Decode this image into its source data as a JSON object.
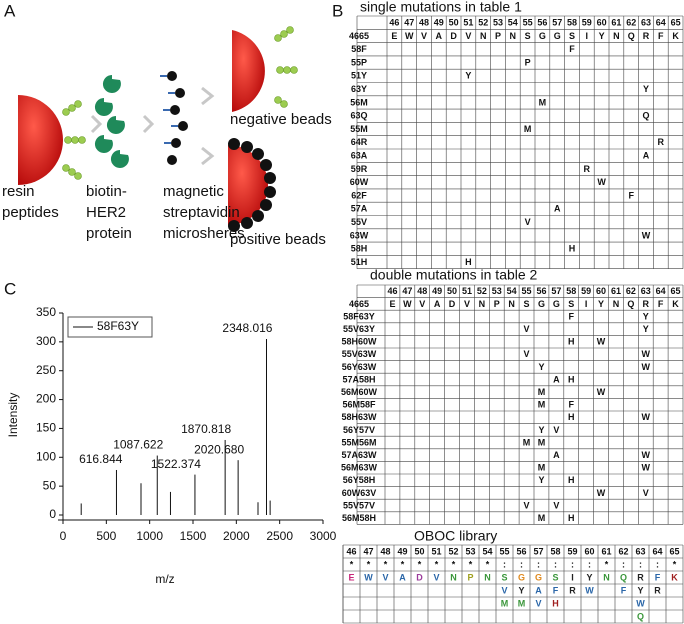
{
  "panel_a": {
    "label": "A",
    "steps": [
      {
        "lines": [
          "resin",
          "peptides"
        ]
      },
      {
        "lines": [
          "biotin-",
          "HER2",
          "protein"
        ]
      },
      {
        "lines": [
          "magnetic",
          "streptavidin",
          "microsheres"
        ]
      }
    ],
    "negative": "negative beads",
    "positive": "positive beads"
  },
  "panel_b": {
    "label": "B",
    "positions": [
      46,
      47,
      48,
      49,
      50,
      51,
      52,
      53,
      54,
      55,
      56,
      57,
      58,
      59,
      60,
      61,
      62,
      63,
      64,
      65
    ],
    "single": {
      "title": "single mutations in table 1",
      "reference": {
        "label": "4665",
        "residues": [
          "E",
          "W",
          "V",
          "A",
          "D",
          "V",
          "N",
          "P",
          "N",
          "S",
          "G",
          "G",
          "S",
          "I",
          "Y",
          "N",
          "Q",
          "R",
          "F",
          "K"
        ]
      },
      "rows": [
        {
          "label": "58F",
          "cells": {
            "12": "F"
          }
        },
        {
          "label": "55P",
          "cells": {
            "9": "P"
          }
        },
        {
          "label": "51Y",
          "cells": {
            "5": "Y"
          }
        },
        {
          "label": "63Y",
          "cells": {
            "17": "Y"
          }
        },
        {
          "label": "56M",
          "cells": {
            "10": "M"
          }
        },
        {
          "label": "63Q",
          "cells": {
            "17": "Q"
          }
        },
        {
          "label": "55M",
          "cells": {
            "9": "M"
          }
        },
        {
          "label": "64R",
          "cells": {
            "18": "R"
          }
        },
        {
          "label": "63A",
          "cells": {
            "17": "A"
          }
        },
        {
          "label": "59R",
          "cells": {
            "13": "R"
          }
        },
        {
          "label": "60W",
          "cells": {
            "14": "W"
          }
        },
        {
          "label": "62F",
          "cells": {
            "16": "F"
          }
        },
        {
          "label": "57A",
          "cells": {
            "11": "A"
          }
        },
        {
          "label": "55V",
          "cells": {
            "9": "V"
          }
        },
        {
          "label": "63W",
          "cells": {
            "17": "W"
          }
        },
        {
          "label": "58H",
          "cells": {
            "12": "H"
          }
        },
        {
          "label": "51H",
          "cells": {
            "5": "H"
          }
        }
      ]
    },
    "double": {
      "title": "double mutations in table 2",
      "reference": {
        "label": "4665",
        "residues": [
          "E",
          "W",
          "V",
          "A",
          "D",
          "V",
          "N",
          "P",
          "N",
          "S",
          "G",
          "G",
          "S",
          "I",
          "Y",
          "N",
          "Q",
          "R",
          "F",
          "K"
        ]
      },
      "rows": [
        {
          "label": "58F63Y",
          "cells": {
            "12": "F",
            "17": "Y"
          }
        },
        {
          "label": "55V63Y",
          "cells": {
            "9": "V",
            "17": "Y"
          }
        },
        {
          "label": "58H60W",
          "cells": {
            "12": "H",
            "14": "W"
          }
        },
        {
          "label": "55V63W",
          "cells": {
            "9": "V",
            "17": "W"
          }
        },
        {
          "label": "56Y63W",
          "cells": {
            "10": "Y",
            "17": "W"
          }
        },
        {
          "label": "57A58H",
          "cells": {
            "11": "A",
            "12": "H"
          }
        },
        {
          "label": "56M60W",
          "cells": {
            "10": "M",
            "14": "W"
          }
        },
        {
          "label": "56M58F",
          "cells": {
            "10": "M",
            "12": "F"
          }
        },
        {
          "label": "58H63W",
          "cells": {
            "12": "H",
            "17": "W"
          }
        },
        {
          "label": "56Y57V",
          "cells": {
            "10": "Y",
            "11": "V"
          }
        },
        {
          "label": "55M56M",
          "cells": {
            "9": "M",
            "10": "M"
          }
        },
        {
          "label": "57A63W",
          "cells": {
            "11": "A",
            "17": "W"
          }
        },
        {
          "label": "56M63W",
          "cells": {
            "10": "M",
            "17": "W"
          }
        },
        {
          "label": "56Y58H",
          "cells": {
            "10": "Y",
            "12": "H"
          }
        },
        {
          "label": "60W63V",
          "cells": {
            "14": "W",
            "17": "V"
          }
        },
        {
          "label": "55V57V",
          "cells": {
            "9": "V",
            "11": "V"
          }
        },
        {
          "label": "56M58H",
          "cells": {
            "10": "M",
            "12": "H"
          }
        }
      ]
    },
    "library": {
      "title": "OBOC library",
      "conservation": [
        "*",
        "*",
        "*",
        "*",
        "*",
        "*",
        "*",
        "*",
        "*",
        ":",
        ":",
        ":",
        ":",
        ":",
        ":",
        "*",
        ":",
        ":",
        ":",
        "*"
      ],
      "rows": [
        [
          "E",
          "W",
          "V",
          "A",
          "D",
          "V",
          "N",
          "P",
          "N",
          "S",
          "G",
          "G",
          "S",
          "I",
          "Y",
          "N",
          "Q",
          "R",
          "F",
          "K"
        ],
        {
          "9": "V",
          "10": "Y",
          "11": "A",
          "12": "F",
          "13": "R",
          "14": "W",
          "16": "F",
          "17": "Y",
          "18": "R"
        },
        {
          "9": "M",
          "10": "M",
          "11": "V",
          "12": "H",
          "17": "W"
        },
        {
          "17": "Q"
        }
      ],
      "residue_colors": {
        "E": "#c8287a",
        "W": "#2a66a8",
        "V": "#2a66a8",
        "A": "#2a66a8",
        "D": "#9a3a9a",
        "N": "#3a963a",
        "P": "#a0a020",
        "S": "#3a963a",
        "G": "#e08a20",
        "I": "#222222",
        "Y": "#222222",
        "Q": "#3a963a",
        "R": "#222222",
        "F": "#2a66a8",
        "K": "#a02020",
        "M": "#3a963a",
        "H": "#a02020"
      }
    }
  },
  "chart_data": {
    "type": "stem",
    "panel_label": "C",
    "x_label": "m/z",
    "y_label": "Intensity",
    "series": [
      {
        "name": "58F63Y",
        "color": "#111111",
        "x": [
          210,
          616.844,
          900,
          1087.622,
          1240,
          1522.374,
          1870.818,
          2020.68,
          2250,
          2348.016,
          2390
        ],
        "values": [
          20,
          78,
          55,
          103,
          40,
          70,
          130,
          95,
          22,
          305,
          25
        ],
        "peak_labels": [
          null,
          "616.844",
          null,
          "1087.622",
          null,
          "1522.374",
          "1870.818",
          "2020.680",
          null,
          "2348.016",
          null
        ]
      }
    ],
    "xlim": [
      0,
      3000
    ],
    "xticks": [
      0,
      500,
      1000,
      1500,
      2000,
      2500,
      3000
    ],
    "ylim": [
      0,
      350
    ],
    "yticks": [
      0,
      50,
      100,
      150,
      200,
      250,
      300,
      350
    ],
    "legend": "upper left"
  }
}
